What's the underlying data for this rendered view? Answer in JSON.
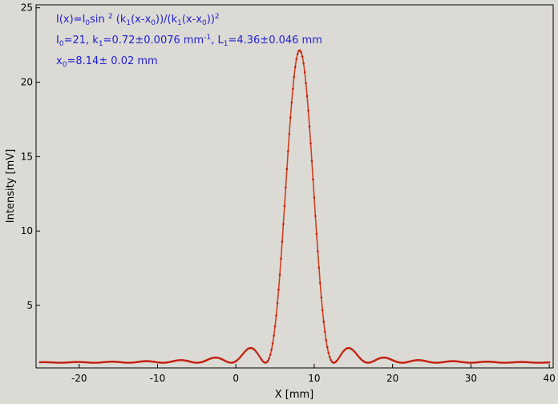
{
  "chart_data": {
    "type": "scatter",
    "xlabel": "X [mm]",
    "ylabel": "Intensity [mV]",
    "xlim": [
      -25.5,
      40.5
    ],
    "ylim": [
      0.8,
      25.2
    ],
    "x_ticks": [
      -20,
      -10,
      0,
      10,
      20,
      30,
      40
    ],
    "y_ticks": [
      5,
      10,
      15,
      20,
      25
    ],
    "x_tick_labels": [
      "-20",
      "-10",
      "0",
      "10",
      "20",
      "30",
      "40"
    ],
    "y_tick_labels": [
      "5",
      "10",
      "15",
      "20",
      "25"
    ],
    "grid": false,
    "marker_color": "#c42010",
    "fit_color": "#d04020",
    "text_color": "#1f1fd0",
    "series": [
      {
        "model": "I(x)=I0 sin^2(k1(x-x0))/(k1(x-x0))^2 + offset",
        "I0": 21,
        "k1": 0.72,
        "x0": 8.14,
        "offset": 1.15,
        "x_start": -25,
        "x_end": 40,
        "n_points": 430
      }
    ],
    "annotations": {
      "formula": {
        "p1": "I(x)=I",
        "s1": "0",
        "p2": "sin ",
        "sup1": "2",
        "p3": " (k",
        "s2": "1",
        "p4": "(x-x",
        "s3": "0",
        "p5": "))/(k",
        "s4": "1",
        "p6": "(x-x",
        "s5": "0",
        "p7": "))",
        "sup2": "2"
      },
      "params": {
        "p1": "I",
        "s1": "0",
        "p2": "=21,  k",
        "s2": "1",
        "p3": "=0.72±0.0076 mm",
        "sup1": "-1",
        "p4": ",   L",
        "s3": "1",
        "p5": "=4.36±0.046 mm"
      },
      "x0": {
        "p1": "x",
        "s1": "0",
        "p2": "=8.14±   0.02 mm"
      }
    }
  }
}
